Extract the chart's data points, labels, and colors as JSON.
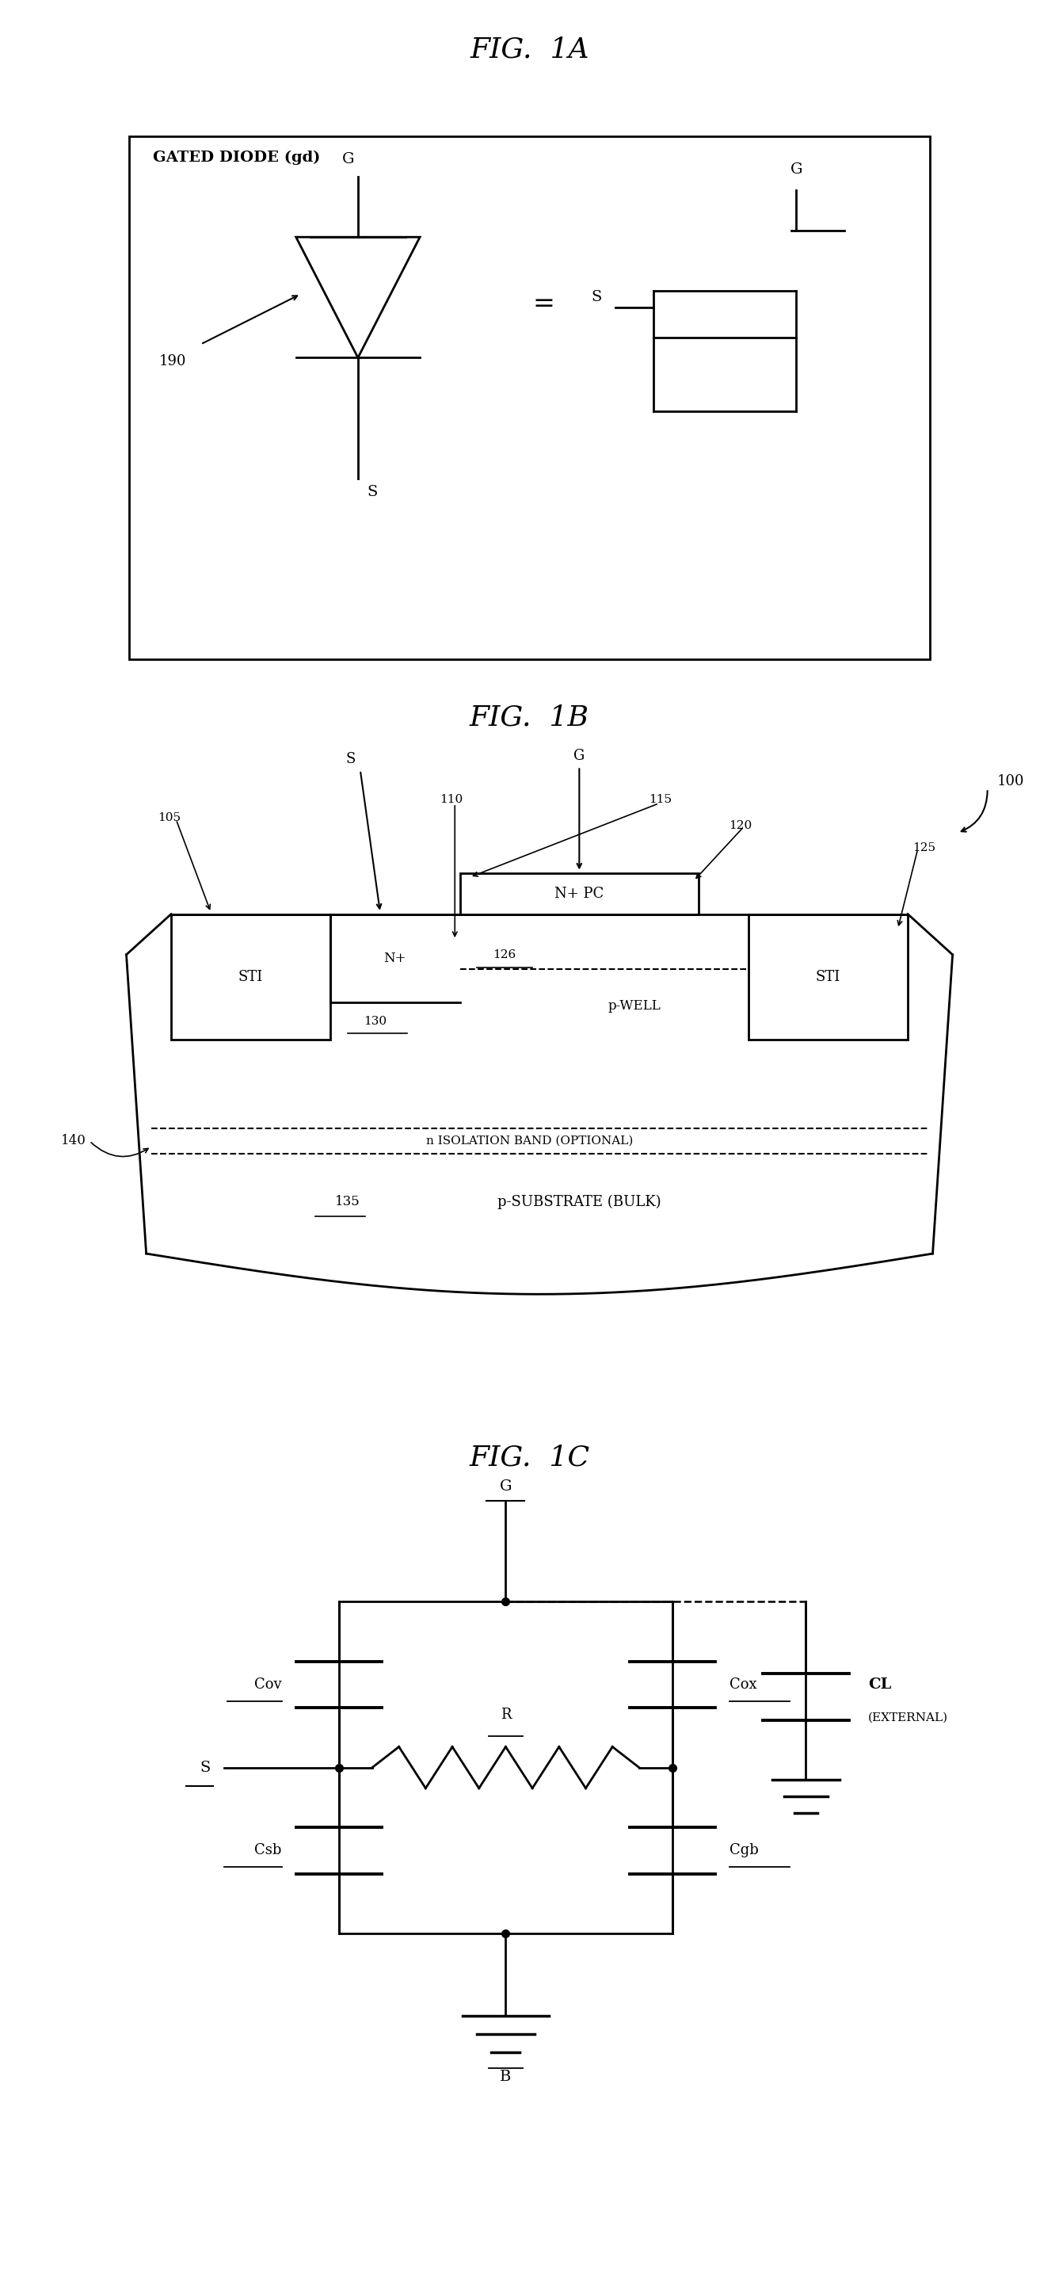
{
  "fig1A_title": "FIG.  1A",
  "fig1B_title": "FIG.  1B",
  "fig1C_title": "FIG.  1C",
  "bg_color": "#ffffff",
  "line_color": "#000000",
  "font_size_title": 26,
  "font_size_label": 14,
  "font_size_small": 12
}
